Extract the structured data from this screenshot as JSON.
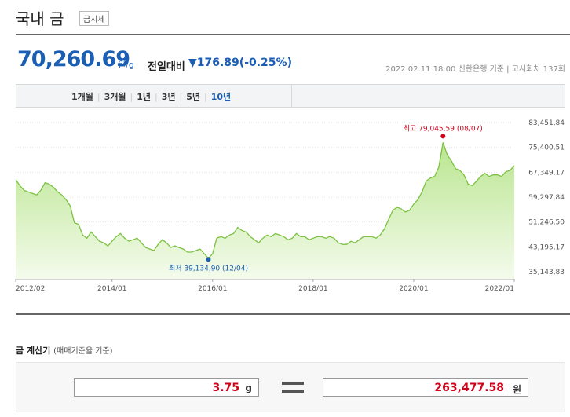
{
  "header": {
    "title": "국내 금",
    "badge": "금시세"
  },
  "price": {
    "value": "70,260.69",
    "unit": "원/g",
    "change_label": "전일대비",
    "change": "▼176.89(-0.25%)"
  },
  "meta": {
    "date": "2022.02.11 18:00",
    "source": "신한은행 기준",
    "round": "고시회차 137회"
  },
  "tabs": [
    "1개월",
    "3개월",
    "1년",
    "3년",
    "5년",
    "10년"
  ],
  "chart_data": {
    "type": "area",
    "color": "#7cc242",
    "x": [
      "2012/02",
      "2012/03",
      "2012/04",
      "2012/05",
      "2012/06",
      "2012/07",
      "2012/08",
      "2012/09",
      "2012/10",
      "2012/11",
      "2012/12",
      "2013/01",
      "2013/02",
      "2013/03",
      "2013/04",
      "2013/05",
      "2013/06",
      "2013/07",
      "2013/08",
      "2013/09",
      "2013/10",
      "2013/11",
      "2013/12",
      "2014/01",
      "2014/02",
      "2014/03",
      "2014/04",
      "2014/05",
      "2014/06",
      "2014/07",
      "2014/08",
      "2014/09",
      "2014/10",
      "2014/11",
      "2014/12",
      "2015/01",
      "2015/02",
      "2015/03",
      "2015/04",
      "2015/05",
      "2015/06",
      "2015/07",
      "2015/08",
      "2015/09",
      "2015/10",
      "2015/11",
      "2015/12",
      "2016/01",
      "2016/02",
      "2016/03",
      "2016/04",
      "2016/05",
      "2016/06",
      "2016/07",
      "2016/08",
      "2016/09",
      "2016/10",
      "2016/11",
      "2016/12",
      "2017/01",
      "2017/02",
      "2017/03",
      "2017/04",
      "2017/05",
      "2017/06",
      "2017/07",
      "2017/08",
      "2017/09",
      "2017/10",
      "2017/11",
      "2017/12",
      "2018/01",
      "2018/02",
      "2018/03",
      "2018/04",
      "2018/05",
      "2018/06",
      "2018/07",
      "2018/08",
      "2018/09",
      "2018/10",
      "2018/11",
      "2018/12",
      "2019/01",
      "2019/02",
      "2019/03",
      "2019/04",
      "2019/05",
      "2019/06",
      "2019/07",
      "2019/08",
      "2019/09",
      "2019/10",
      "2019/11",
      "2019/12",
      "2020/01",
      "2020/02",
      "2020/03",
      "2020/04",
      "2020/05",
      "2020/06",
      "2020/07",
      "2020/08",
      "2020/09",
      "2020/10",
      "2020/11",
      "2020/12",
      "2021/01",
      "2021/02",
      "2021/03",
      "2021/04",
      "2021/05",
      "2021/06",
      "2021/07",
      "2021/08",
      "2021/09",
      "2021/10",
      "2021/11",
      "2021/12",
      "2022/01"
    ],
    "values": [
      65000,
      63000,
      61500,
      61000,
      60500,
      60000,
      61500,
      64000,
      63500,
      62500,
      61000,
      60000,
      58500,
      56500,
      51000,
      50500,
      47000,
      46000,
      48000,
      46500,
      45000,
      44500,
      43500,
      45000,
      46500,
      47500,
      46000,
      45000,
      45500,
      46000,
      44500,
      43000,
      42500,
      42000,
      44000,
      45500,
      44500,
      43000,
      43500,
      43000,
      42500,
      41500,
      41500,
      42000,
      42500,
      41000,
      39500,
      41000,
      46000,
      46500,
      46000,
      47000,
      47500,
      49500,
      48500,
      48000,
      46500,
      45500,
      44500,
      46000,
      47000,
      46500,
      47500,
      47000,
      46500,
      45500,
      46000,
      47500,
      46500,
      46500,
      45500,
      46000,
      46500,
      46500,
      46000,
      46500,
      46000,
      44500,
      44000,
      44000,
      45000,
      44500,
      45500,
      46500,
      46500,
      46500,
      46000,
      47000,
      49000,
      52000,
      55000,
      56000,
      55500,
      54500,
      55000,
      57000,
      58500,
      61000,
      64500,
      65500,
      66000,
      69000,
      77000,
      73000,
      71000,
      68500,
      68000,
      66500,
      63500,
      63000,
      64500,
      66000,
      67000,
      66000,
      66500,
      66500,
      66000,
      67500,
      68000,
      69500
    ],
    "xticks": [
      "2012/02",
      "2014/01",
      "2016/01",
      "2018/01",
      "2020/01",
      "2022/01"
    ],
    "ylim": [
      35143.83,
      83451.84
    ],
    "yticks": [
      {
        "value": 35143.83,
        "label": "35,143,83"
      },
      {
        "value": 43195.17,
        "label": "43,195,17"
      },
      {
        "value": 51246.5,
        "label": "51,246,50"
      },
      {
        "value": 59297.84,
        "label": "59,297,84"
      },
      {
        "value": 67349.17,
        "label": "67,349,17"
      },
      {
        "value": 75400.51,
        "label": "75,400,51"
      },
      {
        "value": 83451.84,
        "label": "83,451,84"
      }
    ],
    "grid": true,
    "annotations": [
      {
        "label": "최고 79,045,59 (08/07)",
        "value": 79045.59,
        "x": "2020/08",
        "color": "#d0021b"
      },
      {
        "label": "최저 39,134,90 (12/04)",
        "value": 39134.9,
        "x": "2015/12",
        "color": "#1a5fb4"
      }
    ]
  },
  "calculator": {
    "title": "금 계산기",
    "subtitle": "(매매기준율 기준)",
    "input": "3.75",
    "input_unit": "g",
    "result": "263,477.58",
    "result_unit": "원"
  }
}
